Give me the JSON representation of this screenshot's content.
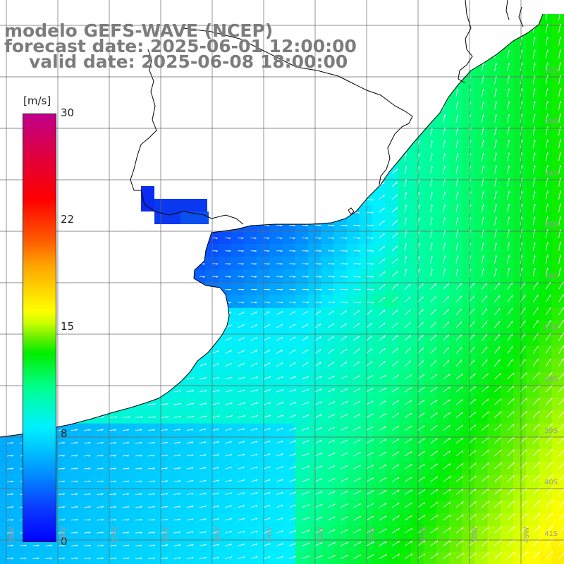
{
  "title": {
    "line1": "modelo GEFS-WAVE (NCEP)",
    "line2": "forecast date: 2025-06-01 12:00:00",
    "line3": "valid date: 2025-06-08 18:00:00"
  },
  "colorbar": {
    "unit": "[m/s]",
    "ticks": [
      "30",
      "22",
      "15",
      "8",
      "0"
    ],
    "tick_values": [
      30,
      22,
      15,
      8,
      0
    ],
    "range": [
      0,
      30
    ]
  },
  "map": {
    "lat_labels": [
      "32S",
      "33S",
      "34S",
      "35S",
      "36S",
      "37S",
      "38S",
      "39S",
      "40S",
      "41S"
    ],
    "lon_labels": [
      "59W",
      "58W",
      "57W",
      "56W",
      "55W",
      "54W",
      "53W",
      "52W",
      "51W",
      "50W",
      "49W"
    ],
    "land_color": "#ffffff",
    "coast_color": "#000000",
    "grid_color": "#666666",
    "arrow_color": "#ffffff"
  }
}
